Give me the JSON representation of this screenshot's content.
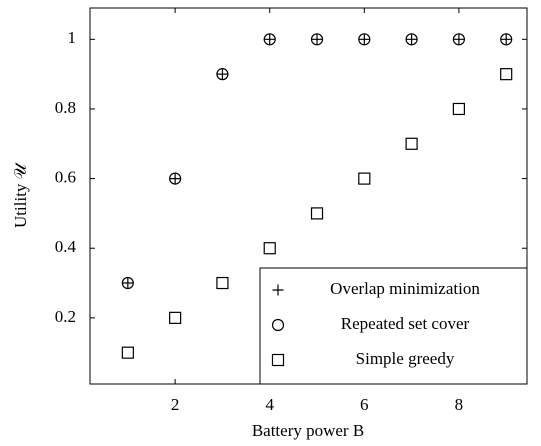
{
  "chart_data": {
    "type": "scatter",
    "x_label": "Battery power B",
    "y_label": "Utility 𝒰",
    "x": [
      1,
      2,
      3,
      4,
      5,
      6,
      7,
      8,
      9
    ],
    "series": [
      {
        "name": "Overlap minimization",
        "marker": "plus",
        "color": "#000000",
        "values": [
          0.3,
          0.6,
          0.9,
          1,
          1,
          1,
          1,
          1,
          1
        ]
      },
      {
        "name": "Repeated set cover",
        "marker": "circle",
        "color": "#000000",
        "values": [
          0.3,
          0.6,
          0.9,
          1,
          1,
          1,
          1,
          1,
          1
        ]
      },
      {
        "name": "Simple greedy",
        "marker": "square",
        "color": "#000000",
        "values": [
          0.1,
          0.2,
          0.3,
          0.4,
          0.5,
          0.6,
          0.7,
          0.8,
          0.9
        ]
      }
    ],
    "xlim": [
      0.2,
      9.44
    ],
    "ylim": [
      0.01,
      1.09
    ],
    "xticks": [
      2,
      4,
      6,
      8
    ],
    "yticks": [
      0.2,
      0.4,
      0.6,
      0.8,
      1
    ],
    "legend": "lower right"
  }
}
